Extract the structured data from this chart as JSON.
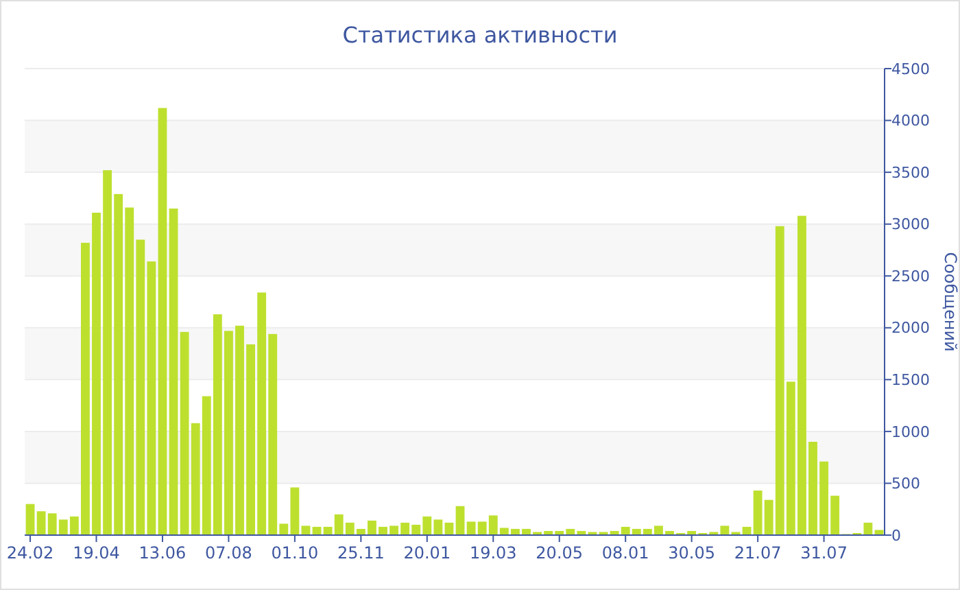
{
  "chart_data": {
    "type": "bar",
    "title": "Статистика активности",
    "ylabel": "Сообщений",
    "color": "#bde02f",
    "categories": [
      "24.02",
      null,
      null,
      null,
      null,
      null,
      "19.04",
      null,
      null,
      null,
      null,
      null,
      "13.06",
      null,
      null,
      null,
      null,
      null,
      "07.08",
      null,
      null,
      null,
      null,
      null,
      "01.10",
      null,
      null,
      null,
      null,
      null,
      "25.11",
      null,
      null,
      null,
      null,
      null,
      "20.01",
      null,
      null,
      null,
      null,
      null,
      "19.03",
      null,
      null,
      null,
      null,
      null,
      "20.05",
      null,
      null,
      null,
      null,
      null,
      "08.01",
      null,
      null,
      null,
      null,
      null,
      "30.05",
      null,
      null,
      null,
      null,
      null,
      "21.07",
      null,
      null,
      null,
      null,
      null,
      "31.07",
      null,
      null,
      null,
      null,
      null
    ],
    "values": [
      300,
      230,
      210,
      150,
      180,
      2820,
      3110,
      3520,
      3290,
      3160,
      2850,
      2640,
      4120,
      3150,
      1960,
      1080,
      1340,
      2130,
      1970,
      2020,
      1840,
      2340,
      1940,
      110,
      460,
      90,
      80,
      80,
      200,
      120,
      60,
      140,
      80,
      90,
      120,
      100,
      180,
      150,
      120,
      280,
      130,
      130,
      190,
      70,
      60,
      60,
      30,
      40,
      40,
      60,
      40,
      30,
      30,
      40,
      80,
      60,
      60,
      90,
      40,
      20,
      40,
      20,
      30,
      90,
      30,
      80,
      430,
      340,
      2980,
      1480,
      3080,
      900,
      710,
      380,
      10,
      20,
      120,
      50
    ],
    "ylim": [
      0,
      4500
    ],
    "yticks": [
      0,
      500,
      1000,
      1500,
      2000,
      2500,
      3000,
      3500,
      4000,
      4500
    ],
    "grid": "y"
  }
}
